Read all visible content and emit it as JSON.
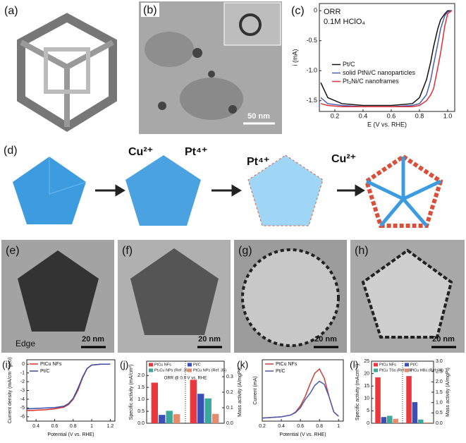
{
  "chart_data": [
    {
      "type": "line",
      "label": "(c)",
      "annotations": [
        "ORR",
        "0.1M HClO₄"
      ],
      "xlabel": "E (V vs. RHE)",
      "ylabel": "i (mA)",
      "xlim": [
        0.09,
        1.05
      ],
      "ylim": [
        -1.68,
        0.12
      ],
      "xticks": [
        0.2,
        0.4,
        0.6,
        0.8,
        {
          "value": 1,
          "label": "1.0"
        }
      ],
      "yticks": [
        0,
        -0.5,
        {
          "value": -1,
          "label": "-1.0"
        },
        -1.5
      ],
      "x": [
        0.1,
        0.15,
        0.25,
        0.4,
        0.6,
        0.75,
        0.8,
        0.85,
        0.88,
        0.9,
        0.93,
        0.95,
        0.98,
        1.0,
        1.03
      ],
      "series": [
        {
          "name": "Pt/C",
          "color": "#111111",
          "values": [
            -1.2,
            -1.45,
            -1.55,
            -1.58,
            -1.58,
            -1.55,
            -1.45,
            -1.15,
            -0.85,
            -0.6,
            -0.3,
            -0.15,
            -0.05,
            0,
            0
          ]
        },
        {
          "name": "solid PtNi/C nanoparticles",
          "color": "#4a5fb0",
          "values": [
            -1.45,
            -1.55,
            -1.58,
            -1.6,
            -1.6,
            -1.58,
            -1.55,
            -1.4,
            -1.15,
            -0.9,
            -0.55,
            -0.3,
            -0.08,
            -0.02,
            0
          ]
        },
        {
          "name": "Pt₃Ni/C nanoframes",
          "color": "#e0303a",
          "values": [
            -1.55,
            -1.58,
            -1.6,
            -1.6,
            -1.6,
            -1.6,
            -1.58,
            -1.5,
            -1.4,
            -1.3,
            -0.95,
            -0.7,
            -0.25,
            -0.05,
            0
          ]
        }
      ],
      "legend_loc": "center left"
    },
    {
      "type": "line",
      "label": "(i)",
      "xlabel": "Potential (V vs. RHE)",
      "ylabel": "Current density (mA/cm⁻²geo)",
      "xlim": [
        0.3,
        1.25
      ],
      "ylim": [
        -6.5,
        0.5
      ],
      "xticks": [
        0.4,
        0.6,
        0.8,
        1,
        1.2
      ],
      "yticks": [
        0,
        -1,
        -2,
        -3,
        -4,
        -5,
        -6
      ],
      "x": [
        0.3,
        0.4,
        0.5,
        0.6,
        0.7,
        0.75,
        0.8,
        0.85,
        0.9,
        0.95,
        1.0,
        1.1,
        1.2
      ],
      "series": [
        {
          "name": "PtCu NFs",
          "color": "#d9302c",
          "values": [
            -5.3,
            -5.25,
            -5.2,
            -5.1,
            -4.9,
            -4.6,
            -4.0,
            -3.0,
            -1.6,
            -0.5,
            -0.1,
            0,
            0
          ]
        },
        {
          "name": "Pt/C",
          "color": "#3a4fa0",
          "values": [
            -5.1,
            -5.05,
            -5.0,
            -4.95,
            -4.8,
            -4.5,
            -3.9,
            -2.8,
            -1.5,
            -0.5,
            -0.1,
            0,
            0
          ]
        }
      ],
      "legend_loc": "upper left"
    },
    {
      "type": "bar",
      "label": "(j)",
      "annotation": "ORR @ 0.9 V vs. RHE",
      "ylabel": "Specific activity (mA/cm²)",
      "y2label": "Mass activity (A/mgPt)",
      "ylim": [
        0,
        2.6
      ],
      "yticks": [
        {
          "value": 0,
          "label": "0.0"
        },
        0.5,
        {
          "value": 1,
          "label": "1.0"
        },
        1.5,
        {
          "value": 2,
          "label": "2.0"
        }
      ],
      "y2lim": [
        0,
        0.4
      ],
      "y2ticks": [
        {
          "value": 0,
          "label": "0.0"
        },
        0.1,
        0.2,
        0.3
      ],
      "categories": [
        null,
        null
      ],
      "category_axes": [
        "y",
        "y2"
      ],
      "series": [
        {
          "name": "PtCu NFs",
          "color": "#e8383d",
          "values": [
            1.7,
            0.28
          ]
        },
        {
          "name": "Pt/C",
          "color": "#3b4fb8",
          "values": [
            0.35,
            0.19
          ]
        },
        {
          "name": "Pt₃Cu NPs (Ref. 35)",
          "color": "#3aa89a",
          "values": [
            0.52,
            0.16
          ]
        },
        {
          "name": "PtCu NPs (Ref. 35)",
          "color": "#e58a6a",
          "values": [
            0.38,
            0.06
          ]
        }
      ]
    },
    {
      "type": "line",
      "label": "(k)",
      "xlabel": "Potential (V vs. RHE)",
      "ylabel": "Current (mA)",
      "xlim": [
        0.2,
        1.05
      ],
      "ylim": [
        0,
        1
      ],
      "xticks": [
        0.2,
        0.4,
        0.6,
        0.8,
        1
      ],
      "x": [
        0.2,
        0.3,
        0.4,
        0.5,
        0.55,
        0.6,
        0.65,
        0.7,
        0.75,
        0.8,
        0.85,
        0.9,
        0.95,
        1.0
      ],
      "series": [
        {
          "name": "PtCu NFs",
          "color": "#c8413a",
          "values": [
            0.05,
            0.06,
            0.07,
            0.1,
            0.15,
            0.25,
            0.4,
            0.6,
            0.78,
            0.85,
            0.7,
            0.4,
            0.15,
            0.08
          ]
        },
        {
          "name": "Pt/C",
          "color": "#4b5bb0",
          "values": [
            0.05,
            0.06,
            0.07,
            0.1,
            0.14,
            0.22,
            0.35,
            0.45,
            0.58,
            0.65,
            0.6,
            0.4,
            0.15,
            0.08
          ]
        }
      ],
      "legend_loc": "upper left"
    },
    {
      "type": "bar",
      "label": "(l)",
      "ylabel": "Specific activity (mAcm⁻²)",
      "y2label": "Mass activity (A/mgPt)",
      "ylim": [
        0,
        25
      ],
      "yticks": [
        0,
        5,
        10,
        15,
        20,
        25
      ],
      "y2lim": [
        0,
        3
      ],
      "y2ticks": [
        {
          "value": 0,
          "label": "0.0"
        },
        0.5,
        {
          "value": 1,
          "label": "1.0"
        },
        1.5,
        {
          "value": 2,
          "label": "2.0"
        },
        2.5,
        {
          "value": 3,
          "label": "3.0"
        }
      ],
      "categories": [
        null,
        null
      ],
      "category_axes": [
        "y",
        "y2"
      ],
      "series": [
        {
          "name": "PtCu NFs",
          "color": "#e8383d",
          "values": [
            18.5,
            2.28
          ]
        },
        {
          "name": "Pt/C",
          "color": "#3b4fb8",
          "values": [
            2.5,
            1.02
          ]
        },
        {
          "name": "PtCu TSs (Ref. 36)",
          "color": "#3aa89a",
          "values": [
            3.0,
            0.18
          ]
        },
        {
          "name": "PtCu HBs (Ref. 36)",
          "color": "#e58a6a",
          "values": [
            1.8,
            0.04
          ]
        }
      ]
    }
  ],
  "images": [
    {
      "label": "(a)"
    },
    {
      "label": "(b)",
      "scale_bar": "50 nm"
    },
    {
      "label": "(d)",
      "ions": [
        "Cu²⁺",
        "Pt⁴⁺",
        "Pt⁴⁺",
        "Cu²⁺"
      ]
    },
    {
      "label": "(e)",
      "scale_bar": "20 nm",
      "annotation": "Edge"
    },
    {
      "label": "(f)",
      "scale_bar": "20 nm"
    },
    {
      "label": "(g)",
      "scale_bar": "20 nm"
    },
    {
      "label": "(h)",
      "scale_bar": "20 nm"
    }
  ]
}
